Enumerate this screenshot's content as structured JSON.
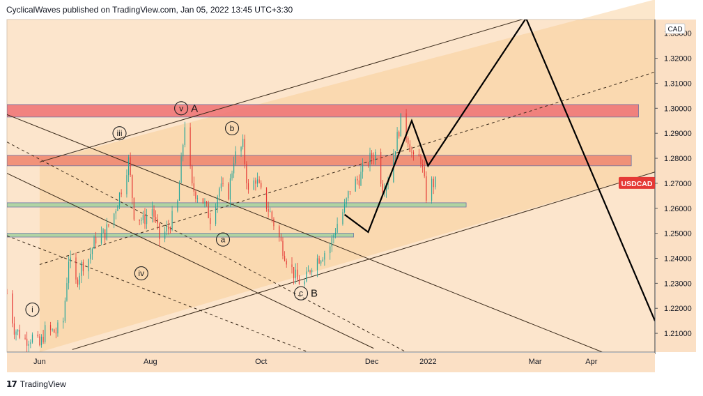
{
  "header": {
    "publisher_line": "CyclicalWaves published on TradingView.com, Jan 05, 2022 13:45 UTC+3:30"
  },
  "footer": {
    "brand_label": "TradingView"
  },
  "chart_data": {
    "type": "candlestick",
    "symbol": "USDCAD",
    "currency": "CAD",
    "ylim": [
      1.2025,
      1.3355
    ],
    "y_ticks": [
      1.21,
      1.22,
      1.23,
      1.24,
      1.25,
      1.26,
      1.27,
      1.28,
      1.29,
      1.3,
      1.31,
      1.32
    ],
    "y_tick_labels": [
      "1.21000",
      "1.22000",
      "1.23000",
      "1.24000",
      "1.25000",
      "1.26000",
      "1.27000",
      "1.28000",
      "1.29000",
      "1.30000",
      "1.31000",
      "1.32000"
    ],
    "top_tick_label_partial": "1.33000",
    "x_labels": [
      {
        "label": "Jun",
        "date": "2021-06-01"
      },
      {
        "label": "Aug",
        "date": "2021-08-01"
      },
      {
        "label": "Oct",
        "date": "2021-10-01"
      },
      {
        "label": "Dec",
        "date": "2021-12-01"
      },
      {
        "label": "2022",
        "date": "2022-01-01"
      },
      {
        "label": "Mar",
        "date": "2022-03-01"
      },
      {
        "label": "Apr",
        "date": "2022-04-01"
      }
    ],
    "x_range": [
      "2021-05-14",
      "2022-05-06"
    ],
    "last_price_label": "USDCAD",
    "last_price": 1.27,
    "price_path": [
      [
        "2021-05-14",
        1.226
      ],
      [
        "2021-05-18",
        1.212
      ],
      [
        "2021-05-24",
        1.2075
      ],
      [
        "2021-05-28",
        1.2085
      ],
      [
        "2021-06-01",
        1.205
      ],
      [
        "2021-06-04",
        1.211
      ],
      [
        "2021-06-10",
        1.2105
      ],
      [
        "2021-06-14",
        1.215
      ],
      [
        "2021-06-17",
        1.24
      ],
      [
        "2021-06-21",
        1.23
      ],
      [
        "2021-06-24",
        1.237
      ],
      [
        "2021-06-28",
        1.24
      ],
      [
        "2021-07-02",
        1.248
      ],
      [
        "2021-07-07",
        1.25
      ],
      [
        "2021-07-12",
        1.258
      ],
      [
        "2021-07-16",
        1.268
      ],
      [
        "2021-07-20",
        1.279
      ],
      [
        "2021-07-23",
        1.258
      ],
      [
        "2021-07-28",
        1.255
      ],
      [
        "2021-08-02",
        1.26
      ],
      [
        "2021-08-06",
        1.248
      ],
      [
        "2021-08-11",
        1.252
      ],
      [
        "2021-08-16",
        1.262
      ],
      [
        "2021-08-20",
        1.294
      ],
      [
        "2021-08-24",
        1.268
      ],
      [
        "2021-08-30",
        1.263
      ],
      [
        "2021-09-03",
        1.256
      ],
      [
        "2021-09-08",
        1.268
      ],
      [
        "2021-09-13",
        1.266
      ],
      [
        "2021-09-16",
        1.28
      ],
      [
        "2021-09-21",
        1.285
      ],
      [
        "2021-09-24",
        1.266
      ],
      [
        "2021-09-28",
        1.272
      ],
      [
        "2021-10-01",
        1.266
      ],
      [
        "2021-10-06",
        1.258
      ],
      [
        "2021-10-11",
        1.248
      ],
      [
        "2021-10-15",
        1.24
      ],
      [
        "2021-10-21",
        1.231
      ],
      [
        "2021-10-25",
        1.23
      ],
      [
        "2021-10-29",
        1.238
      ],
      [
        "2021-11-03",
        1.241
      ],
      [
        "2021-11-08",
        1.245
      ],
      [
        "2021-11-12",
        1.254
      ],
      [
        "2021-11-16",
        1.26
      ],
      [
        "2021-11-19",
        1.268
      ],
      [
        "2021-11-24",
        1.272
      ],
      [
        "2021-11-29",
        1.279
      ],
      [
        "2021-12-03",
        1.282
      ],
      [
        "2021-12-07",
        1.269
      ],
      [
        "2021-12-10",
        1.272
      ],
      [
        "2021-12-14",
        1.285
      ],
      [
        "2021-12-17",
        1.295
      ],
      [
        "2021-12-21",
        1.288
      ],
      [
        "2021-12-24",
        1.279
      ],
      [
        "2021-12-28",
        1.28
      ],
      [
        "2021-12-31",
        1.265
      ],
      [
        "2022-01-03",
        1.27
      ],
      [
        "2022-01-05",
        1.27
      ]
    ],
    "horizontal_zones": [
      {
        "from": 1.2965,
        "to": 1.3015,
        "start": "2021-05-14",
        "end": "2022-04-27",
        "color": "#f07878"
      },
      {
        "from": 1.277,
        "to": 1.2812,
        "start": "2021-05-14",
        "end": "2022-04-23",
        "color": "#f08a72"
      },
      {
        "from": 1.2605,
        "to": 1.2622,
        "start": "2021-05-14",
        "end": "2022-01-22",
        "color": "#a9d3a0"
      },
      {
        "from": 1.2485,
        "to": 1.25,
        "start": "2021-05-14",
        "end": "2021-11-21",
        "color": "#a9d3a0"
      }
    ],
    "wave_labels": [
      {
        "text": "i",
        "date": "2021-05-28",
        "value": 1.2195,
        "circled": true
      },
      {
        "text": "iii",
        "date": "2021-07-15",
        "value": 1.29,
        "circled": true
      },
      {
        "text": "iv",
        "date": "2021-07-27",
        "value": 1.234,
        "circled": true
      },
      {
        "text": "v",
        "date": "2021-08-18",
        "value": 1.3,
        "circled": true,
        "suffix": "A"
      },
      {
        "text": "b",
        "date": "2021-09-15",
        "value": 1.292,
        "circled": true
      },
      {
        "text": "a",
        "date": "2021-09-10",
        "value": 1.2475,
        "circled": true
      },
      {
        "text": "c",
        "date": "2021-10-23",
        "value": 1.226,
        "circled": true,
        "suffix": "B"
      }
    ],
    "projection_path": [
      [
        "2021-11-16",
        1.2575
      ],
      [
        "2021-11-29",
        1.2505
      ],
      [
        "2021-12-23",
        1.295
      ],
      [
        "2022-01-01",
        1.277
      ],
      [
        "2022-02-24",
        1.336
      ],
      [
        "2022-05-06",
        1.215
      ]
    ],
    "trend_lines": [
      {
        "style": "solid",
        "from": [
          "2021-06-01",
          1.2785
        ],
        "to": [
          "2022-02-24",
          1.336
        ]
      },
      {
        "style": "solid",
        "from": [
          "2021-06-19",
          1.2035
        ],
        "to": [
          "2022-05-06",
          1.2745
        ]
      },
      {
        "style": "dashed",
        "from": [
          "2021-06-01",
          1.2375
        ],
        "to": [
          "2022-05-06",
          1.3145
        ]
      },
      {
        "style": "solid",
        "from": [
          "2021-05-14",
          1.2975
        ],
        "to": [
          "2022-04-07",
          1.2025
        ]
      },
      {
        "style": "solid",
        "from": [
          "2021-05-14",
          1.274
        ],
        "to": [
          "2021-12-02",
          1.204
        ]
      },
      {
        "style": "dashed",
        "from": [
          "2021-05-14",
          1.2865
        ],
        "to": [
          "2021-12-20",
          1.2025
        ]
      },
      {
        "style": "dashed",
        "from": [
          "2021-05-14",
          1.249
        ],
        "to": [
          "2021-10-27",
          1.2025
        ]
      }
    ]
  }
}
